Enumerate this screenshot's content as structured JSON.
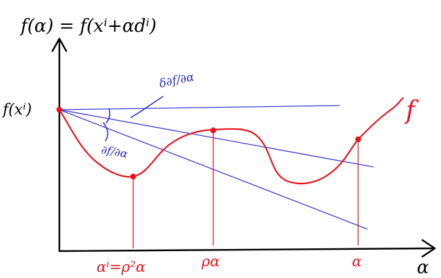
{
  "labels": {
    "title": "f(α) = f(xⁱ+αdⁱ)",
    "y_intercept": "f(xⁱ)",
    "curve_name": "f",
    "x_axis": "α",
    "slope_upper": "δ∂f/∂α",
    "slope_lower": "∂f/∂α",
    "tick_left": "αⁱ=ρ²α",
    "tick_mid": "ρα",
    "tick_right": "α"
  },
  "colors": {
    "axes": "#000000",
    "curve": "#e8141c",
    "lines": "#3a3ad0",
    "annotation": "#2b2bc8",
    "text": "#000000"
  }
}
